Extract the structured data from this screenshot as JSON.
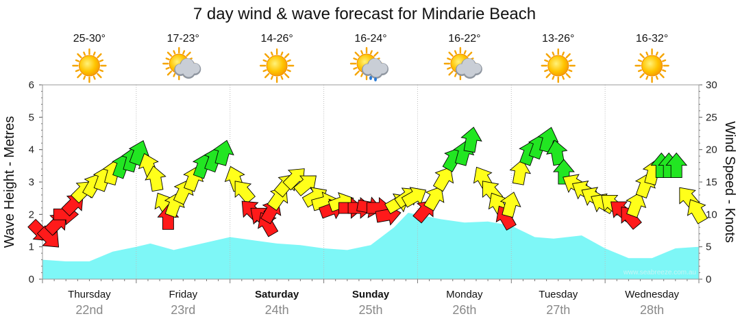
{
  "chart_data": {
    "type": "area+arrows",
    "title": "7 day wind & wave forecast for Mindarie Beach",
    "y_left": {
      "label": "Wave Height - Metres",
      "min": 0,
      "max": 6,
      "ticks": [
        0,
        1,
        2,
        3,
        4,
        5,
        6
      ]
    },
    "y_right": {
      "label": "Wind Speed - Knots",
      "min": 0,
      "max": 30,
      "ticks": [
        0,
        5,
        10,
        15,
        20,
        25,
        30
      ]
    },
    "credit": "www.seabreeze.com.au",
    "days": [
      {
        "day": "Thursday",
        "date": "22nd",
        "temp": "25-30°",
        "weather": "sunny",
        "bold": false
      },
      {
        "day": "Friday",
        "date": "23rd",
        "temp": "17-23°",
        "weather": "partly-cloudy",
        "bold": false
      },
      {
        "day": "Saturday",
        "date": "24th",
        "temp": "14-26°",
        "weather": "sunny",
        "bold": true
      },
      {
        "day": "Sunday",
        "date": "25th",
        "temp": "16-24°",
        "weather": "showers",
        "bold": true
      },
      {
        "day": "Monday",
        "date": "26th",
        "temp": "16-22°",
        "weather": "partly-cloudy",
        "bold": false
      },
      {
        "day": "Tuesday",
        "date": "27th",
        "temp": "13-26°",
        "weather": "sunny",
        "bold": false
      },
      {
        "day": "Wednesday",
        "date": "28th",
        "temp": "16-32°",
        "weather": "sunny",
        "bold": false
      }
    ],
    "wave_height": {
      "name": "Wave Height",
      "unit": "m",
      "x_days": [
        0,
        0.25,
        0.5,
        0.75,
        1.0,
        1.15,
        1.4,
        1.7,
        2.0,
        2.25,
        2.5,
        2.75,
        3.0,
        3.25,
        3.5,
        3.75,
        3.9,
        4.25,
        4.5,
        4.75,
        5.0,
        5.25,
        5.45,
        5.75,
        6.0,
        6.25,
        6.5,
        6.75,
        7.0
      ],
      "values": [
        0.6,
        0.55,
        0.55,
        0.85,
        1.0,
        1.1,
        0.9,
        1.1,
        1.3,
        1.2,
        1.1,
        1.05,
        0.95,
        0.9,
        1.05,
        1.6,
        2.05,
        1.85,
        1.75,
        1.78,
        1.65,
        1.3,
        1.25,
        1.35,
        0.95,
        0.65,
        0.65,
        0.95,
        1.0
      ]
    },
    "wind": {
      "name": "Wind Speed",
      "unit": "knots",
      "color_rule": {
        "red": "offshore",
        "yellow": "cross-shore",
        "green": "onshore"
      },
      "points": [
        {
          "x": 0.0,
          "knots": 7,
          "dir": 135,
          "color": "red"
        },
        {
          "x": 0.1,
          "knots": 6,
          "dir": 135,
          "color": "red"
        },
        {
          "x": 0.18,
          "knots": 9,
          "dir": 45,
          "color": "red"
        },
        {
          "x": 0.28,
          "knots": 10,
          "dir": 90,
          "color": "red"
        },
        {
          "x": 0.36,
          "knots": 12,
          "dir": 45,
          "color": "red"
        },
        {
          "x": 0.46,
          "knots": 14,
          "dir": 45,
          "color": "yellow"
        },
        {
          "x": 0.56,
          "knots": 15,
          "dir": 30,
          "color": "yellow"
        },
        {
          "x": 0.66,
          "knots": 16,
          "dir": 20,
          "color": "yellow"
        },
        {
          "x": 0.76,
          "knots": 17,
          "dir": 15,
          "color": "yellow"
        },
        {
          "x": 0.86,
          "knots": 18,
          "dir": 20,
          "color": "green"
        },
        {
          "x": 0.96,
          "knots": 19,
          "dir": 15,
          "color": "green"
        },
        {
          "x": 1.04,
          "knots": 20,
          "dir": 20,
          "color": "green"
        },
        {
          "x": 1.12,
          "knots": 18,
          "dir": 340,
          "color": "yellow"
        },
        {
          "x": 1.2,
          "knots": 16,
          "dir": 350,
          "color": "yellow"
        },
        {
          "x": 1.28,
          "knots": 12,
          "dir": 330,
          "color": "yellow"
        },
        {
          "x": 1.34,
          "knots": 10,
          "dir": 0,
          "color": "red"
        },
        {
          "x": 1.42,
          "knots": 12,
          "dir": 20,
          "color": "yellow"
        },
        {
          "x": 1.52,
          "knots": 14,
          "dir": 25,
          "color": "yellow"
        },
        {
          "x": 1.62,
          "knots": 16,
          "dir": 20,
          "color": "yellow"
        },
        {
          "x": 1.72,
          "knots": 18,
          "dir": 20,
          "color": "green"
        },
        {
          "x": 1.84,
          "knots": 19,
          "dir": 20,
          "color": "green"
        },
        {
          "x": 1.94,
          "knots": 20,
          "dir": 15,
          "color": "green"
        },
        {
          "x": 2.04,
          "knots": 16,
          "dir": 340,
          "color": "yellow"
        },
        {
          "x": 2.12,
          "knots": 14,
          "dir": 320,
          "color": "yellow"
        },
        {
          "x": 2.2,
          "knots": 11,
          "dir": 315,
          "color": "red"
        },
        {
          "x": 2.3,
          "knots": 10,
          "dir": 310,
          "color": "red"
        },
        {
          "x": 2.38,
          "knots": 9,
          "dir": 330,
          "color": "red"
        },
        {
          "x": 2.46,
          "knots": 11,
          "dir": 30,
          "color": "red"
        },
        {
          "x": 2.54,
          "knots": 13,
          "dir": 35,
          "color": "yellow"
        },
        {
          "x": 2.62,
          "knots": 15,
          "dir": 40,
          "color": "yellow"
        },
        {
          "x": 2.72,
          "knots": 16,
          "dir": 45,
          "color": "yellow"
        },
        {
          "x": 2.84,
          "knots": 15,
          "dir": 50,
          "color": "yellow"
        },
        {
          "x": 2.94,
          "knots": 13,
          "dir": 60,
          "color": "yellow"
        },
        {
          "x": 3.04,
          "knots": 12,
          "dir": 75,
          "color": "yellow"
        },
        {
          "x": 3.12,
          "knots": 11,
          "dir": 70,
          "color": "red"
        },
        {
          "x": 3.22,
          "knots": 12,
          "dir": 70,
          "color": "yellow"
        },
        {
          "x": 3.32,
          "knots": 11,
          "dir": 90,
          "color": "red"
        },
        {
          "x": 3.42,
          "knots": 11,
          "dir": 90,
          "color": "red"
        },
        {
          "x": 3.52,
          "knots": 11,
          "dir": 100,
          "color": "red"
        },
        {
          "x": 3.62,
          "knots": 11,
          "dir": 90,
          "color": "red"
        },
        {
          "x": 3.72,
          "knots": 10,
          "dir": 80,
          "color": "red"
        },
        {
          "x": 3.82,
          "knots": 12,
          "dir": 60,
          "color": "yellow"
        },
        {
          "x": 3.92,
          "knots": 13,
          "dir": 55,
          "color": "yellow"
        },
        {
          "x": 4.0,
          "knots": 13,
          "dir": 60,
          "color": "yellow"
        },
        {
          "x": 4.1,
          "knots": 11,
          "dir": 40,
          "color": "red"
        },
        {
          "x": 4.2,
          "knots": 13,
          "dir": 30,
          "color": "yellow"
        },
        {
          "x": 4.3,
          "knots": 16,
          "dir": 30,
          "color": "yellow"
        },
        {
          "x": 4.4,
          "knots": 19,
          "dir": 30,
          "color": "green"
        },
        {
          "x": 4.5,
          "knots": 20,
          "dir": 15,
          "color": "green"
        },
        {
          "x": 4.58,
          "knots": 22,
          "dir": 10,
          "color": "green"
        },
        {
          "x": 4.68,
          "knots": 16,
          "dir": 330,
          "color": "yellow"
        },
        {
          "x": 4.76,
          "knots": 14,
          "dir": 320,
          "color": "yellow"
        },
        {
          "x": 4.84,
          "knots": 12,
          "dir": 330,
          "color": "yellow"
        },
        {
          "x": 4.92,
          "knots": 10,
          "dir": 330,
          "color": "red"
        },
        {
          "x": 5.0,
          "knots": 12,
          "dir": 15,
          "color": "yellow"
        },
        {
          "x": 5.1,
          "knots": 17,
          "dir": 10,
          "color": "yellow"
        },
        {
          "x": 5.2,
          "knots": 20,
          "dir": 20,
          "color": "green"
        },
        {
          "x": 5.3,
          "knots": 21,
          "dir": 20,
          "color": "green"
        },
        {
          "x": 5.4,
          "knots": 22,
          "dir": 15,
          "color": "green"
        },
        {
          "x": 5.48,
          "knots": 20,
          "dir": 350,
          "color": "green"
        },
        {
          "x": 5.56,
          "knots": 17,
          "dir": 0,
          "color": "green"
        },
        {
          "x": 5.64,
          "knots": 15,
          "dir": 300,
          "color": "yellow"
        },
        {
          "x": 5.74,
          "knots": 14,
          "dir": 300,
          "color": "yellow"
        },
        {
          "x": 5.84,
          "knots": 13,
          "dir": 300,
          "color": "yellow"
        },
        {
          "x": 5.94,
          "knots": 12,
          "dir": 300,
          "color": "yellow"
        },
        {
          "x": 6.04,
          "knots": 12,
          "dir": 310,
          "color": "yellow"
        },
        {
          "x": 6.14,
          "knots": 11,
          "dir": 310,
          "color": "red"
        },
        {
          "x": 6.24,
          "knots": 10,
          "dir": 320,
          "color": "red"
        },
        {
          "x": 6.34,
          "knots": 12,
          "dir": 20,
          "color": "yellow"
        },
        {
          "x": 6.44,
          "knots": 15,
          "dir": 20,
          "color": "yellow"
        },
        {
          "x": 6.52,
          "knots": 17,
          "dir": 15,
          "color": "yellow"
        },
        {
          "x": 6.6,
          "knots": 18,
          "dir": 0,
          "color": "green"
        },
        {
          "x": 6.68,
          "knots": 18,
          "dir": 0,
          "color": "green"
        },
        {
          "x": 6.76,
          "knots": 18,
          "dir": 0,
          "color": "green"
        },
        {
          "x": 6.86,
          "knots": 13,
          "dir": 320,
          "color": "yellow"
        },
        {
          "x": 6.96,
          "knots": 11,
          "dir": 330,
          "color": "yellow"
        }
      ]
    },
    "colors": {
      "wave_fill": "#7ef7f7",
      "red": "#ff1a1a",
      "yellow": "#ffff1a",
      "green": "#22e622",
      "grid": "#bbbbbb"
    }
  }
}
